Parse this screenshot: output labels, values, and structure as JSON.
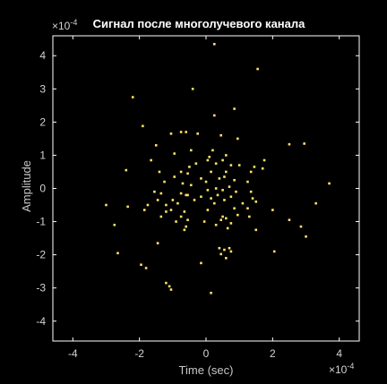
{
  "chart_data": {
    "type": "scatter",
    "title": "Сигнал после многолучевого канала",
    "xlabel": "Time (sec)",
    "ylabel": "Amplitude",
    "xlim": [
      -4.6,
      4.6
    ],
    "ylim": [
      -4.6,
      4.6
    ],
    "x_ticks": [
      "-4",
      "-2",
      "0",
      "2",
      "4"
    ],
    "y_ticks": [
      "-4",
      "-3",
      "-2",
      "-1",
      "0",
      "1",
      "2",
      "3",
      "4"
    ],
    "x_exponent_base": "×10",
    "x_exponent": "-4",
    "y_exponent_base": "×10",
    "y_exponent": "-4",
    "marker_color": "#ffe066",
    "background_color": "#000000",
    "axes_color": "#ffffff",
    "points": [
      [
        0.25,
        4.35
      ],
      [
        1.55,
        3.6
      ],
      [
        -0.4,
        3.0
      ],
      [
        -2.2,
        2.75
      ],
      [
        0.85,
        2.4
      ],
      [
        0.25,
        2.2
      ],
      [
        -1.9,
        1.88
      ],
      [
        -0.75,
        1.7
      ],
      [
        -0.6,
        1.7
      ],
      [
        -1.05,
        1.65
      ],
      [
        -0.25,
        1.65
      ],
      [
        0.45,
        1.6
      ],
      [
        0.95,
        1.5
      ],
      [
        -1.5,
        1.3
      ],
      [
        2.5,
        1.33
      ],
      [
        2.95,
        1.35
      ],
      [
        -0.45,
        1.15
      ],
      [
        0.2,
        1.15
      ],
      [
        -0.95,
        1.05
      ],
      [
        0.6,
        1.0
      ],
      [
        0.1,
        0.95
      ],
      [
        -1.65,
        0.85
      ],
      [
        0.05,
        0.85
      ],
      [
        0.5,
        0.85
      ],
      [
        1.75,
        0.85
      ],
      [
        -0.3,
        0.75
      ],
      [
        -0.5,
        0.65
      ],
      [
        0.3,
        0.75
      ],
      [
        0.75,
        0.7
      ],
      [
        1.0,
        0.7
      ],
      [
        1.45,
        0.65
      ],
      [
        1.7,
        0.6
      ],
      [
        -2.4,
        0.55
      ],
      [
        -1.4,
        0.5
      ],
      [
        -0.75,
        0.5
      ],
      [
        -0.55,
        0.45
      ],
      [
        0.15,
        0.5
      ],
      [
        0.6,
        0.5
      ],
      [
        1.35,
        0.5
      ],
      [
        -0.95,
        0.35
      ],
      [
        -0.15,
        0.3
      ],
      [
        0.4,
        0.3
      ],
      [
        0.55,
        0.35
      ],
      [
        -1.25,
        0.2
      ],
      [
        -0.7,
        0.15
      ],
      [
        0.0,
        0.2
      ],
      [
        0.85,
        0.25
      ],
      [
        1.25,
        0.2
      ],
      [
        3.7,
        0.15
      ],
      [
        -0.45,
        0.1
      ],
      [
        0.3,
        0.0
      ],
      [
        0.7,
        0.05
      ],
      [
        -1.55,
        -0.1
      ],
      [
        -1.35,
        -0.15
      ],
      [
        -0.75,
        -0.15
      ],
      [
        -0.6,
        -0.2
      ],
      [
        0.05,
        -0.05
      ],
      [
        0.5,
        -0.05
      ],
      [
        0.9,
        -0.1
      ],
      [
        1.35,
        -0.1
      ],
      [
        -0.55,
        -0.2
      ],
      [
        -0.15,
        -0.25
      ],
      [
        0.35,
        -0.2
      ],
      [
        0.75,
        -0.25
      ],
      [
        -1.45,
        -0.35
      ],
      [
        -1.0,
        -0.35
      ],
      [
        -0.35,
        -0.35
      ],
      [
        0.15,
        -0.3
      ],
      [
        0.55,
        -0.35
      ],
      [
        1.4,
        -0.3
      ],
      [
        -3.0,
        -0.5
      ],
      [
        -2.35,
        -0.55
      ],
      [
        -1.75,
        -0.5
      ],
      [
        -1.2,
        -0.5
      ],
      [
        -0.85,
        -0.45
      ],
      [
        0.25,
        -0.45
      ],
      [
        1.1,
        -0.45
      ],
      [
        1.5,
        -0.4
      ],
      [
        3.3,
        -0.45
      ],
      [
        -1.85,
        -0.65
      ],
      [
        -1.2,
        -0.7
      ],
      [
        -1.05,
        -0.65
      ],
      [
        -0.65,
        -0.7
      ],
      [
        0.05,
        -0.65
      ],
      [
        0.85,
        -0.6
      ],
      [
        1.25,
        -0.6
      ],
      [
        2.0,
        -0.65
      ],
      [
        -1.35,
        -0.85
      ],
      [
        -0.75,
        -0.85
      ],
      [
        0.5,
        -0.85
      ],
      [
        0.95,
        -0.8
      ],
      [
        -0.55,
        -0.95
      ],
      [
        0.45,
        -0.95
      ],
      [
        0.6,
        -0.9
      ],
      [
        1.3,
        -0.85
      ],
      [
        -0.9,
        -1.0
      ],
      [
        -0.05,
        -1.0
      ],
      [
        0.75,
        -1.05
      ],
      [
        2.5,
        -0.95
      ],
      [
        -2.75,
        -1.1
      ],
      [
        -0.6,
        -1.15
      ],
      [
        0.3,
        -1.1
      ],
      [
        0.65,
        -1.2
      ],
      [
        2.85,
        -1.15
      ],
      [
        -0.65,
        -1.25
      ],
      [
        1.5,
        -1.25
      ],
      [
        3.0,
        -1.45
      ],
      [
        -1.45,
        -1.65
      ],
      [
        0.4,
        -1.8
      ],
      [
        0.55,
        -1.85
      ],
      [
        0.7,
        -1.8
      ],
      [
        0.75,
        -1.9
      ],
      [
        2.05,
        -1.9
      ],
      [
        -2.65,
        -1.95
      ],
      [
        0.45,
        -1.98
      ],
      [
        0.6,
        -2.1
      ],
      [
        -0.15,
        -2.25
      ],
      [
        -1.95,
        -2.3
      ],
      [
        -1.8,
        -2.4
      ],
      [
        -1.2,
        -2.85
      ],
      [
        -1.1,
        -2.95
      ],
      [
        -1.05,
        -3.05
      ],
      [
        0.15,
        -3.15
      ]
    ]
  }
}
